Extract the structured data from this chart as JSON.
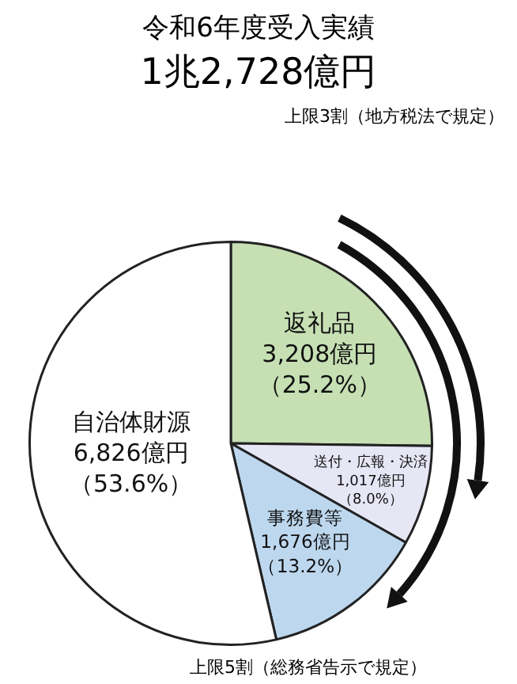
{
  "chart_data": {
    "type": "pie",
    "title": "令和6年度受入実績",
    "subtitle": "1兆2,728億円",
    "categories": [
      "返礼品",
      "送付・広報・決済",
      "事務費等",
      "自治体財源"
    ],
    "values": [
      3208,
      1017,
      1676,
      6826
    ],
    "colors": [
      "#c6e0b4",
      "#e6e6f5",
      "#bdd7ee",
      "#ffffff"
    ],
    "value_labels": [
      "3,208億円（25.2%）",
      "1,017億円（8.0%）",
      "1,676億円（13.2%）",
      "6,826億円（53.6%）"
    ],
    "annotations": [
      "上限3割（地方税法で規定）",
      "上限5割（総務省告示で規定）"
    ]
  }
}
